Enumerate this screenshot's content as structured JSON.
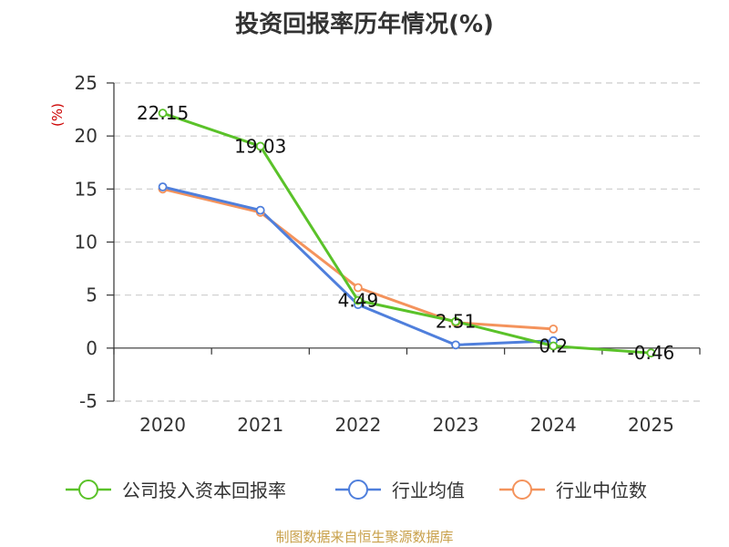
{
  "chart_data": {
    "type": "line",
    "title": "投资回报率历年情况(%)",
    "ylabel": "(%)",
    "categories": [
      "2020",
      "2021",
      "2022",
      "2023",
      "2024",
      "2025"
    ],
    "ylim": [
      -5,
      25
    ],
    "yticks": [
      -5,
      0,
      5,
      10,
      15,
      20,
      25
    ],
    "grid": true,
    "legend": "bottom",
    "series": [
      {
        "name": "公司投入资本回报率",
        "color": "#5ac229",
        "values": [
          22.15,
          19.03,
          4.49,
          2.51,
          0.2,
          -0.46
        ],
        "labels": [
          "22.15",
          "19.03",
          "4.49",
          "2.51",
          "0.2",
          "-0.46"
        ]
      },
      {
        "name": "行业均值",
        "color": "#4f7fdc",
        "values": [
          15.2,
          13.0,
          4.1,
          0.3,
          0.7,
          null
        ]
      },
      {
        "name": "行业中位数",
        "color": "#f4935c",
        "values": [
          15.0,
          12.8,
          5.7,
          2.4,
          1.8,
          null
        ]
      }
    ]
  },
  "source": "制图数据来自恒生聚源数据库"
}
